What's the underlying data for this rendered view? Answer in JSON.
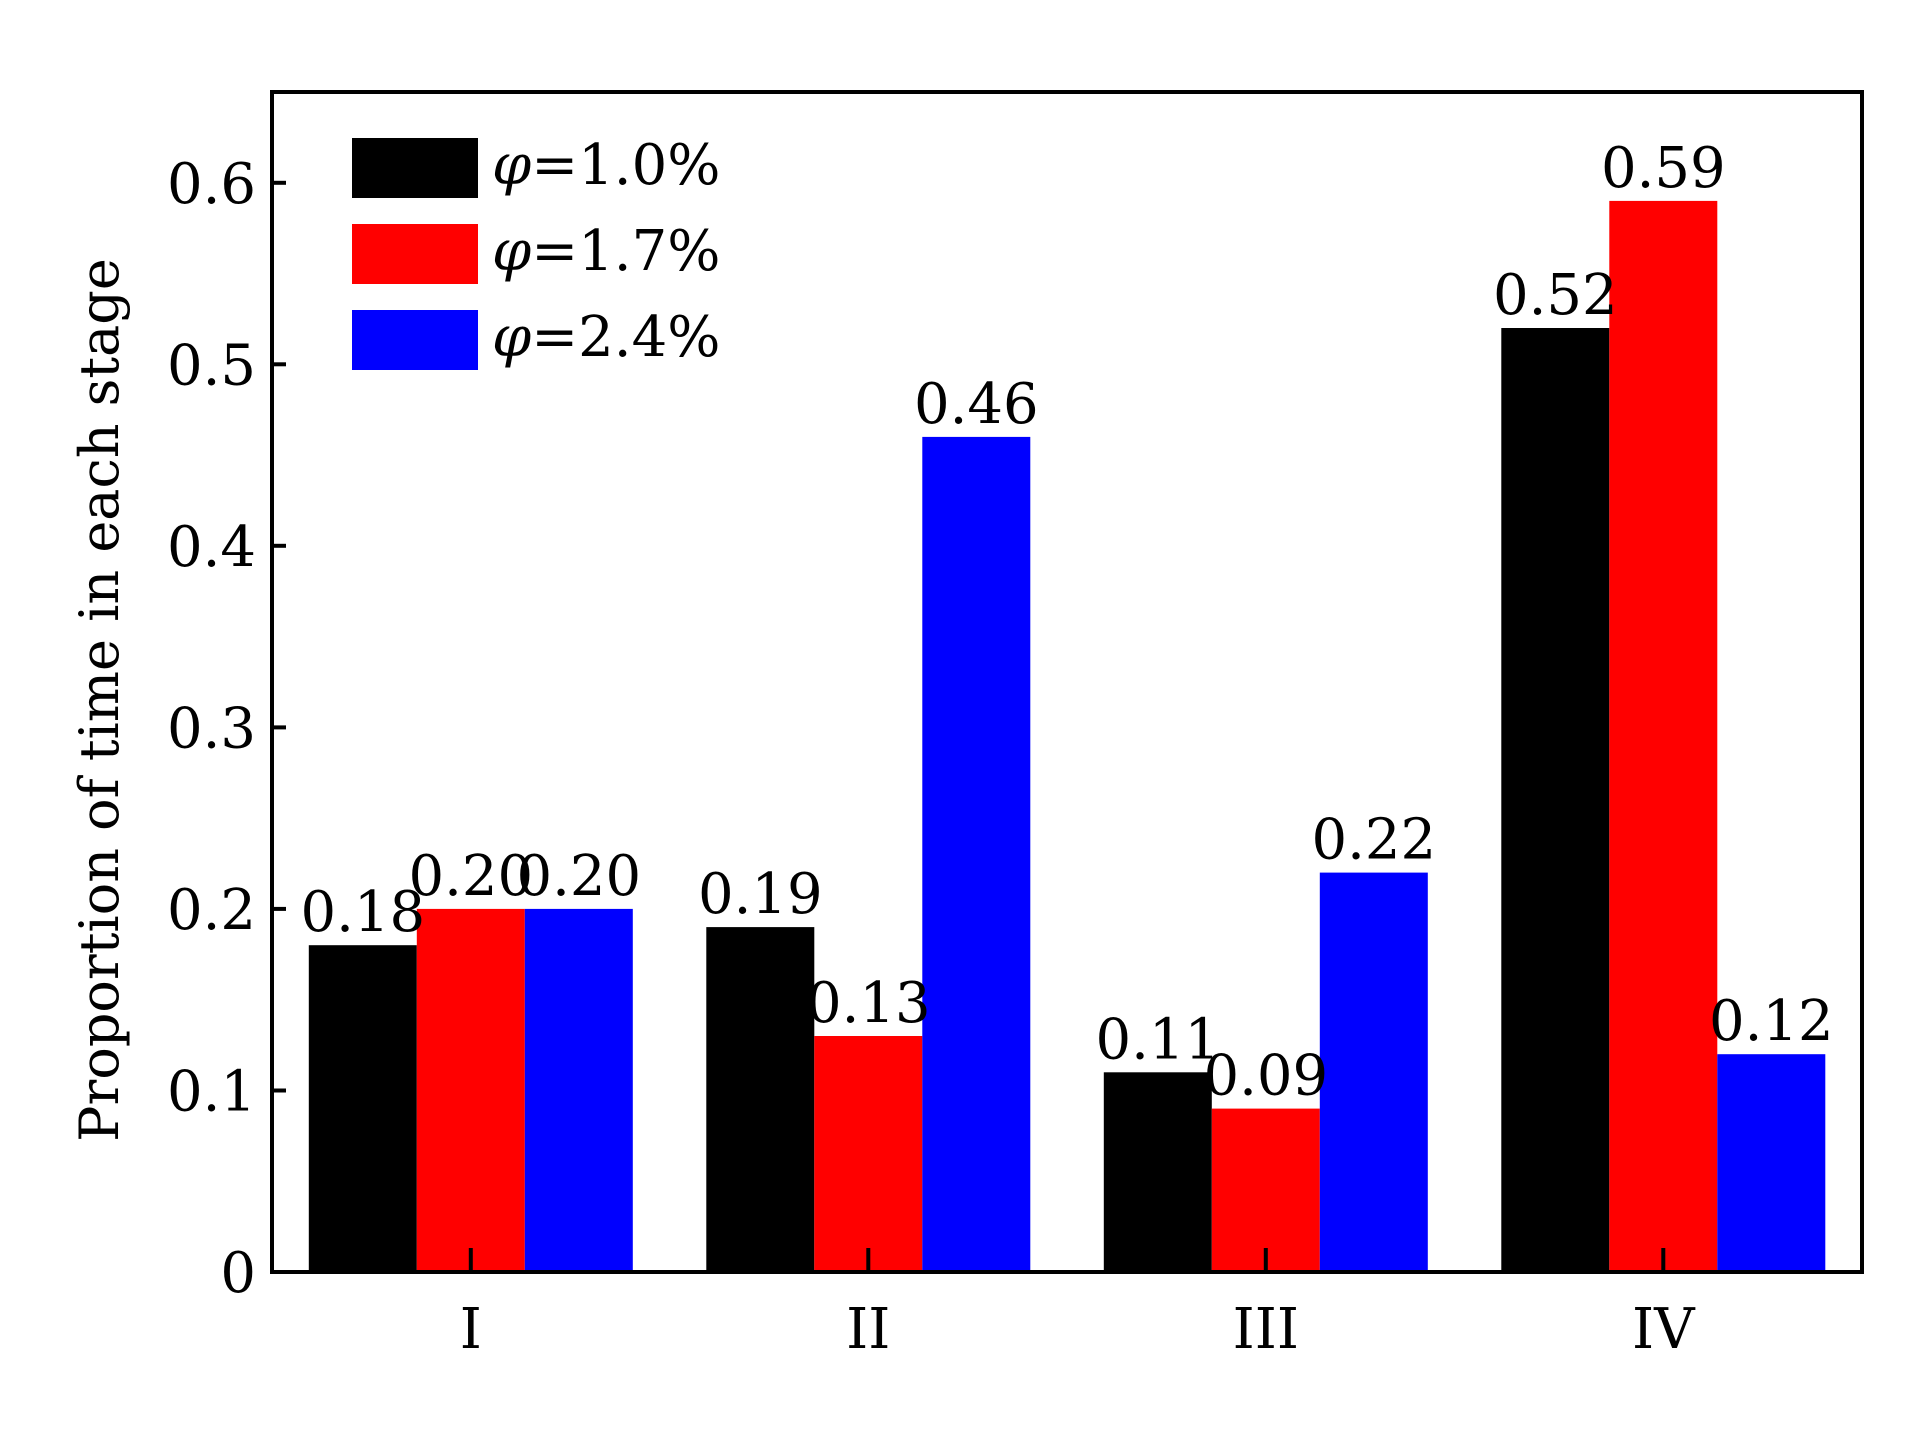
{
  "chart_data": {
    "type": "bar",
    "title": "",
    "xlabel": "",
    "ylabel": "Proportion of time in each stage",
    "categories": [
      "I",
      "II",
      "III",
      "IV"
    ],
    "series": [
      {
        "name": "φ=1.0%",
        "legend_symbol": "φ",
        "legend_value": "=1.0%",
        "color": "#000000",
        "values": [
          0.18,
          0.19,
          0.11,
          0.52
        ],
        "labels": [
          "0.18",
          "0.19",
          "0.11",
          "0.52"
        ]
      },
      {
        "name": "φ=1.7%",
        "legend_symbol": "φ",
        "legend_value": "=1.7%",
        "color": "#ff0000",
        "values": [
          0.2,
          0.13,
          0.09,
          0.59
        ],
        "labels": [
          "0.20",
          "0.13",
          "0.09",
          "0.59"
        ]
      },
      {
        "name": "φ=2.4%",
        "legend_symbol": "φ",
        "legend_value": "=2.4%",
        "color": "#0000ff",
        "values": [
          0.2,
          0.46,
          0.22,
          0.12
        ],
        "labels": [
          "0.20",
          "0.46",
          "0.22",
          "0.12"
        ]
      }
    ],
    "ylim": [
      0,
      0.65
    ],
    "yticks": [
      0,
      0.1,
      0.2,
      0.3,
      0.4,
      0.5,
      0.6
    ],
    "ytick_labels": [
      "0",
      "0.1",
      "0.2",
      "0.3",
      "0.4",
      "0.5",
      "0.6"
    ],
    "grid": false,
    "legend_position": "top-left"
  }
}
